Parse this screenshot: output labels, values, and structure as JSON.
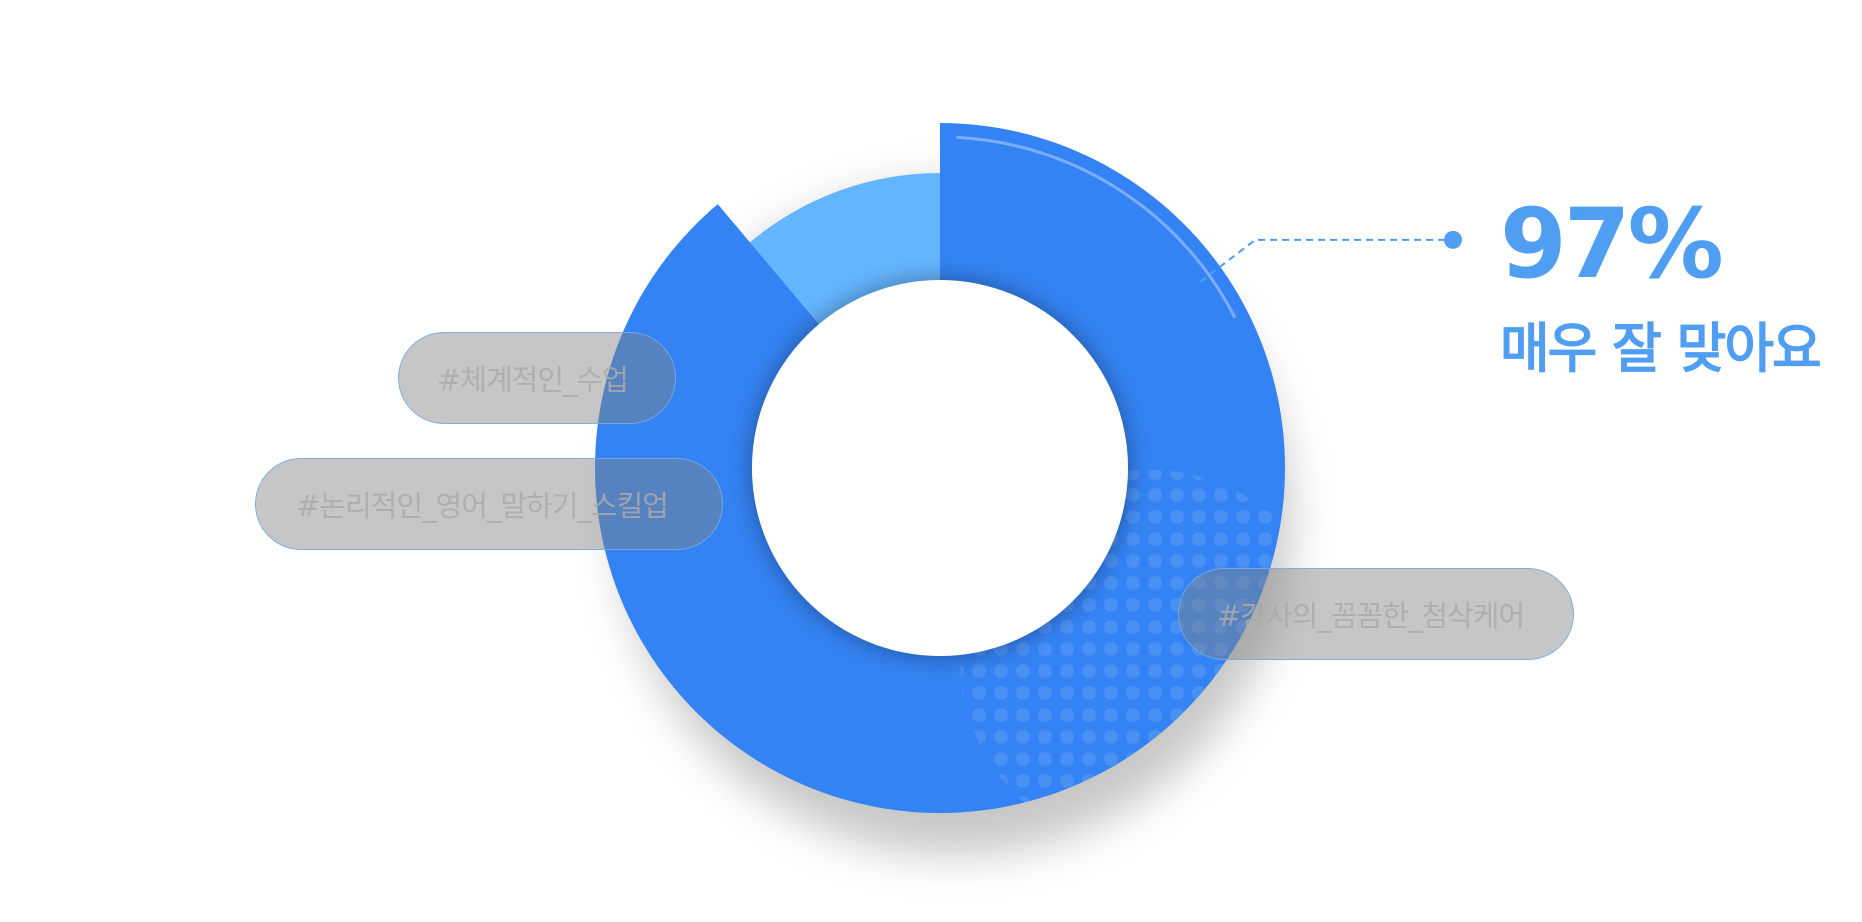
{
  "chart_data": {
    "type": "pie",
    "style": "donut",
    "slices": [
      {
        "label": "매우 잘 맞아요",
        "value": 97,
        "color": "#3483f4"
      },
      {
        "label": "",
        "value": 3,
        "color": "#64b5ff"
      }
    ],
    "callout": {
      "value_text": "97%",
      "label": "매우 잘 맞아요",
      "color": "#4f9ef2"
    },
    "tags": [
      "#체계적인_수업",
      "#논리적인_영어_말하기_스킬업",
      "#강사의_꼼꼼한_첨삭케어"
    ]
  }
}
